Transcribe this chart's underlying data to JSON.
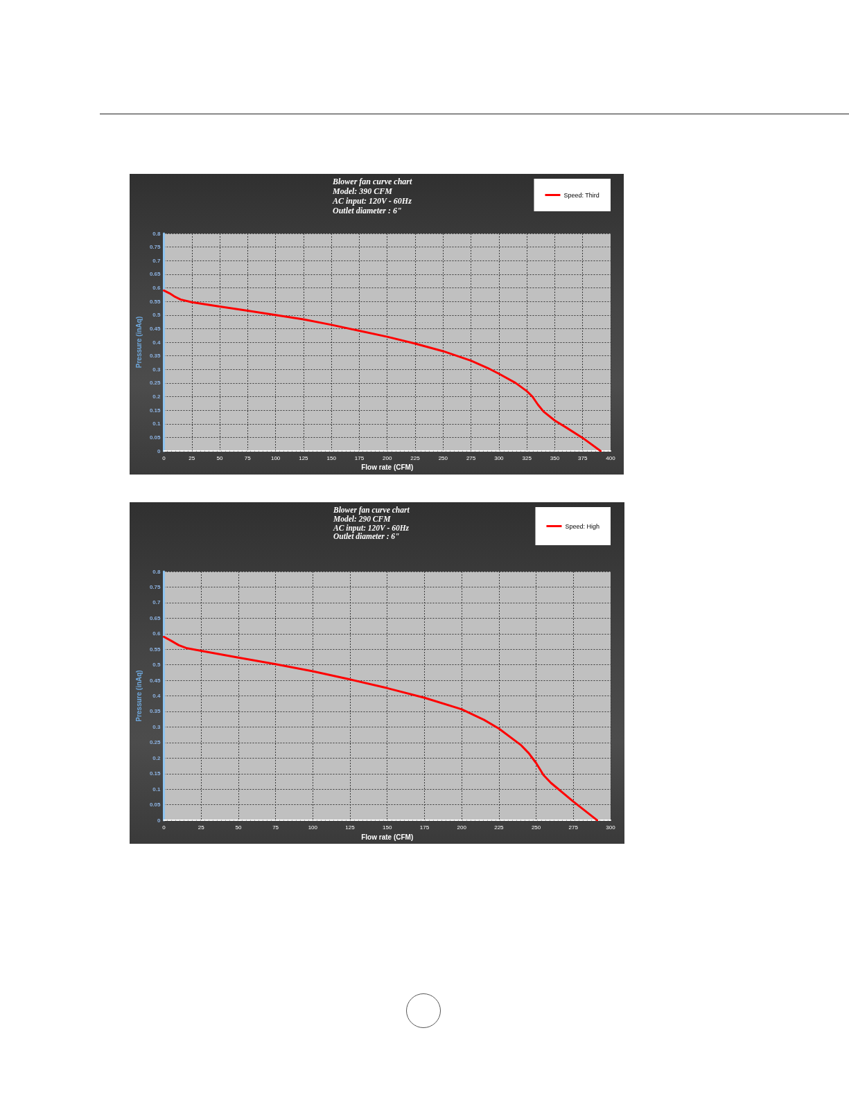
{
  "chart_data": [
    {
      "type": "line",
      "title": "Blower fan curve chart",
      "subtitle": "Model: 390 CFM\nAC input: 120V - 60Hz\nOutlet diameter : 6\"",
      "xlabel": "Flow rate (CFM)",
      "ylabel": "Pressure (inAq)",
      "x": [
        0,
        5,
        10,
        15,
        25,
        50,
        75,
        100,
        125,
        150,
        175,
        200,
        225,
        250,
        275,
        290,
        300,
        315,
        325,
        330,
        335,
        340,
        350,
        360,
        375,
        391
      ],
      "series": [
        {
          "name": "Speed: Third",
          "color": "#ff0000",
          "values": [
            0.59,
            0.58,
            0.567,
            0.557,
            0.547,
            0.531,
            0.516,
            0.5,
            0.484,
            0.464,
            0.442,
            0.42,
            0.395,
            0.367,
            0.332,
            0.305,
            0.284,
            0.25,
            0.22,
            0.2,
            0.17,
            0.145,
            0.112,
            0.087,
            0.048,
            0
          ]
        }
      ],
      "xlim": [
        0,
        400
      ],
      "xticks": [
        0,
        25,
        50,
        75,
        100,
        125,
        150,
        175,
        200,
        225,
        250,
        275,
        300,
        325,
        350,
        375,
        400
      ],
      "ylim": [
        0,
        0.8
      ],
      "yticks": [
        0,
        0.05,
        0.1,
        0.15,
        0.2,
        0.25,
        0.3,
        0.35,
        0.4,
        0.45,
        0.5,
        0.55,
        0.6,
        0.65,
        0.7,
        0.75,
        0.8
      ],
      "grid": true,
      "legend": "top right",
      "marker": "none",
      "line_style": "solid"
    },
    {
      "type": "line",
      "title": "Blower fan curve chart",
      "subtitle": "Model: 290 CFM\nAC input: 120V - 60Hz\nOutlet diameter : 6\"",
      "xlabel": "Flow rate (CFM)",
      "ylabel": "Pressure (inAq)",
      "x": [
        0,
        5,
        10,
        15,
        25,
        50,
        75,
        100,
        125,
        150,
        175,
        200,
        215,
        225,
        240,
        245,
        250,
        255,
        260,
        275,
        291
      ],
      "series": [
        {
          "name": "Speed: High",
          "color": "#ff0000",
          "values": [
            0.59,
            0.577,
            0.563,
            0.554,
            0.545,
            0.523,
            0.502,
            0.479,
            0.453,
            0.425,
            0.394,
            0.357,
            0.323,
            0.295,
            0.241,
            0.216,
            0.184,
            0.145,
            0.12,
            0.06,
            0
          ]
        }
      ],
      "xlim": [
        0,
        300
      ],
      "xticks": [
        0,
        25,
        50,
        75,
        100,
        125,
        150,
        175,
        200,
        225,
        250,
        275,
        300
      ],
      "ylim": [
        0,
        0.8
      ],
      "yticks": [
        0,
        0.05,
        0.1,
        0.15,
        0.2,
        0.25,
        0.3,
        0.35,
        0.4,
        0.45,
        0.5,
        0.55,
        0.6,
        0.65,
        0.7,
        0.75,
        0.8
      ],
      "grid": true,
      "legend": "top right",
      "marker": "none",
      "line_style": "solid"
    }
  ]
}
